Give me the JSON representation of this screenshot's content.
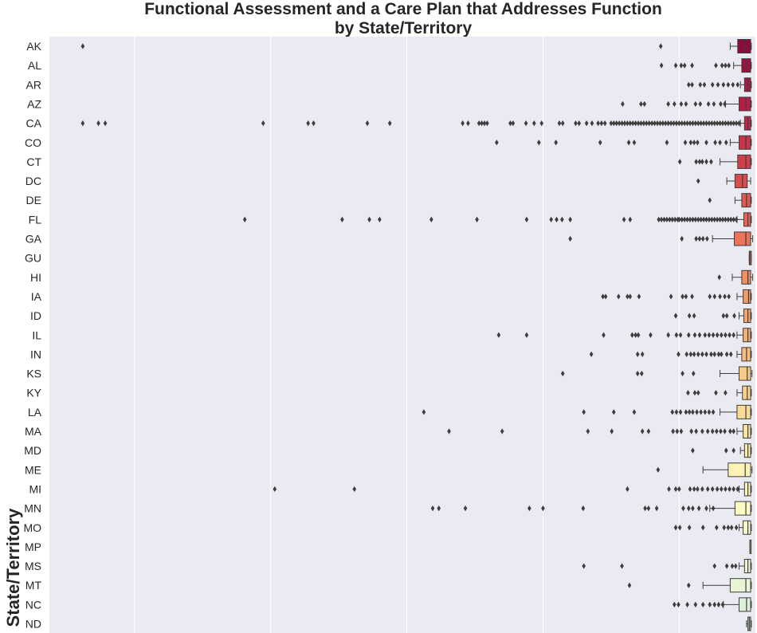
{
  "chart_data": {
    "type": "boxplot",
    "orientation": "horizontal",
    "title": [
      "Functional Assessment and a Care Plan that Addresses Function",
      "by State/Territory"
    ],
    "xlabel": "",
    "ylabel": "State/Territory",
    "xlim": [
      -25,
      1012
    ],
    "grid": true,
    "colormap": "YlOrRd (reversed, top dark red to bottom pale yellow)",
    "categories": [
      "AK",
      "AL",
      "AR",
      "AZ",
      "CA",
      "CO",
      "CT",
      "DC",
      "DE",
      "FL",
      "GA",
      "GU",
      "HI",
      "IA",
      "ID",
      "IL",
      "IN",
      "KS",
      "KY",
      "LA",
      "MA",
      "MD",
      "ME",
      "MI",
      "MN",
      "MO",
      "MP",
      "MS",
      "MT",
      "NC",
      "ND"
    ],
    "series": [
      {
        "cat": "AK",
        "color": "#8e0a3b",
        "q1": 986,
        "median": 996,
        "q3": 1005,
        "whisker_low": 975,
        "whisker_high": 1006,
        "outliers": [
          24,
          873
        ]
      },
      {
        "cat": "AL",
        "color": "#9c1140",
        "q1": 992,
        "median": 999,
        "q3": 1005,
        "whisker_low": 980,
        "whisker_high": 1006,
        "outliers": [
          874,
          895,
          903,
          908,
          919,
          954,
          963,
          968,
          973
        ]
      },
      {
        "cat": "AR",
        "color": "#a91844",
        "q1": 996,
        "median": 1001,
        "q3": 1005,
        "whisker_low": 990,
        "whisker_high": 1006,
        "outliers": [
          914,
          919,
          931,
          937,
          949,
          957,
          965,
          972,
          979,
          986
        ]
      },
      {
        "cat": "AZ",
        "color": "#b42045",
        "q1": 988,
        "median": 998,
        "q3": 1005,
        "whisker_low": 968,
        "whisker_high": 1006,
        "outliers": [
          817,
          844,
          849,
          884,
          893,
          903,
          910,
          924,
          931,
          943,
          951,
          961,
          967
        ]
      },
      {
        "cat": "CA",
        "color": "#be2a46",
        "q1": 996,
        "median": 1001,
        "q3": 1005,
        "whisker_low": 990,
        "whisker_high": 1006,
        "outliers": [
          24,
          47,
          57,
          289,
          355,
          363,
          442,
          475,
          582,
          590,
          606,
          610,
          614,
          618,
          652,
          656,
          675,
          687,
          698,
          724,
          729,
          748,
          753,
          764,
          772,
          781,
          786,
          791,
          800,
          804,
          808,
          812,
          816,
          820,
          824,
          828,
          832,
          836,
          840,
          844,
          848,
          852,
          856,
          860,
          864,
          868,
          872,
          876,
          880,
          884,
          888,
          892,
          896,
          900,
          904,
          908,
          912,
          916,
          920,
          924,
          928,
          932,
          936,
          940,
          944,
          948,
          952,
          956,
          960,
          964,
          968,
          972,
          976,
          980,
          984,
          988
        ]
      },
      {
        "cat": "CO",
        "color": "#c73548",
        "q1": 988,
        "median": 998,
        "q3": 1005,
        "whisker_low": 975,
        "whisker_high": 1006,
        "outliers": [
          632,
          694,
          719,
          784,
          826,
          834,
          882,
          909,
          917,
          922,
          927,
          940,
          953,
          960,
          969
        ]
      },
      {
        "cat": "CT",
        "color": "#d0404b",
        "q1": 986,
        "median": 998,
        "q3": 1005,
        "whisker_low": 960,
        "whisker_high": 1006,
        "outliers": [
          901,
          925,
          930,
          934,
          940,
          947
        ]
      },
      {
        "cat": "DC",
        "color": "#d84c4e",
        "q1": 982,
        "median": 993,
        "q3": 1000,
        "whisker_low": 970,
        "whisker_high": 1005,
        "outliers": [
          928
        ]
      },
      {
        "cat": "DE",
        "color": "#df5952",
        "q1": 992,
        "median": 999,
        "q3": 1005,
        "whisker_low": 982,
        "whisker_high": 1006,
        "outliers": [
          945
        ]
      },
      {
        "cat": "FL",
        "color": "#e56656",
        "q1": 995,
        "median": 1001,
        "q3": 1005,
        "whisker_low": 985,
        "whisker_high": 1006,
        "outliers": [
          262,
          405,
          445,
          460,
          536,
          603,
          676,
          712,
          720,
          728,
          740,
          819,
          828,
          870,
          874,
          878,
          882,
          886,
          890,
          894,
          898,
          900,
          904,
          908,
          912,
          916,
          920,
          924,
          928,
          932,
          936,
          940,
          944,
          948,
          952,
          956,
          960,
          964,
          968,
          972,
          976,
          980,
          984
        ]
      },
      {
        "cat": "GA",
        "color": "#ea735a",
        "q1": 981,
        "median": 998,
        "q3": 1005,
        "whisker_low": 949,
        "whisker_high": 1008,
        "outliers": [
          740,
          904,
          925,
          930,
          935,
          941
        ]
      },
      {
        "cat": "GU",
        "color": "#ee815f",
        "q1": 1003,
        "median": 1004,
        "q3": 1006,
        "whisker_low": 1003,
        "whisker_high": 1006,
        "outliers": []
      },
      {
        "cat": "HI",
        "color": "#f18e63",
        "q1": 992,
        "median": 1001,
        "q3": 1005,
        "whisker_low": 978,
        "whisker_high": 1008,
        "outliers": [
          959
        ]
      },
      {
        "cat": "IA",
        "color": "#f39b69",
        "q1": 994,
        "median": 1002,
        "q3": 1005,
        "whisker_low": 985,
        "whisker_high": 1006,
        "outliers": [
          788,
          792,
          811,
          824,
          828,
          841,
          888,
          905,
          910,
          919,
          945,
          952,
          960,
          967,
          973
        ]
      },
      {
        "cat": "ID",
        "color": "#f5a76f",
        "q1": 995,
        "median": 1001,
        "q3": 1005,
        "whisker_low": 988,
        "whisker_high": 1006,
        "outliers": [
          895,
          915,
          922,
          965,
          970,
          981
        ]
      },
      {
        "cat": "IL",
        "color": "#f6b276",
        "q1": 994,
        "median": 1001,
        "q3": 1005,
        "whisker_low": 985,
        "whisker_high": 1006,
        "outliers": [
          635,
          676,
          789,
          831,
          836,
          840,
          858,
          884,
          896,
          902,
          914,
          923,
          930,
          938,
          944,
          950,
          956,
          962,
          968,
          974,
          980
        ]
      },
      {
        "cat": "IN",
        "color": "#f7bd7e",
        "q1": 992,
        "median": 999,
        "q3": 1005,
        "whisker_low": 985,
        "whisker_high": 1006,
        "outliers": [
          771,
          839,
          846,
          899,
          911,
          917,
          922,
          928,
          934,
          940,
          947,
          952,
          958,
          962,
          970,
          976
        ]
      },
      {
        "cat": "KS",
        "color": "#f8c886",
        "q1": 988,
        "median": 1000,
        "q3": 1005,
        "whisker_low": 960,
        "whisker_high": 1007,
        "outliers": [
          729,
          839,
          845,
          905,
          921
        ]
      },
      {
        "cat": "KY",
        "color": "#f9d28f",
        "q1": 993,
        "median": 1000,
        "q3": 1005,
        "whisker_low": 985,
        "whisker_high": 1006,
        "outliers": [
          913,
          923,
          928,
          954,
          968
        ]
      },
      {
        "cat": "LA",
        "color": "#fadc98",
        "q1": 985,
        "median": 998,
        "q3": 1005,
        "whisker_low": 960,
        "whisker_high": 1006,
        "outliers": [
          525,
          760,
          804,
          834,
          890,
          896,
          902,
          910,
          915,
          920,
          926,
          932,
          938,
          944,
          950
        ]
      },
      {
        "cat": "MA",
        "color": "#fbe5a2",
        "q1": 994,
        "median": 1001,
        "q3": 1005,
        "whisker_low": 985,
        "whisker_high": 1006,
        "outliers": [
          562,
          640,
          766,
          801,
          846,
          855,
          891,
          897,
          903,
          918,
          925,
          934,
          942,
          949,
          955,
          961,
          967,
          975,
          980
        ]
      },
      {
        "cat": "MD",
        "color": "#fcedab",
        "q1": 996,
        "median": 1001,
        "q3": 1005,
        "whisker_low": 990,
        "whisker_high": 1006,
        "outliers": [
          920,
          969,
          980
        ]
      },
      {
        "cat": "ME",
        "color": "#fcf3b5",
        "q1": 972,
        "median": 997,
        "q3": 1005,
        "whisker_low": 935,
        "whisker_high": 1007,
        "outliers": [
          869
        ]
      },
      {
        "cat": "MI",
        "color": "#fcf8be",
        "q1": 996,
        "median": 1001,
        "q3": 1005,
        "whisker_low": 988,
        "whisker_high": 1006,
        "outliers": [
          306,
          423,
          824,
          885,
          895,
          900,
          916,
          922,
          927,
          934,
          942,
          949,
          956,
          962,
          968,
          974,
          980,
          986
        ]
      },
      {
        "cat": "MN",
        "color": "#fcfbc5",
        "q1": 982,
        "median": 998,
        "q3": 1005,
        "whisker_low": 945,
        "whisker_high": 1006,
        "outliers": [
          538,
          547,
          586,
          680,
          700,
          759,
          850,
          855,
          867,
          906,
          914,
          920,
          929,
          940,
          950
        ]
      },
      {
        "cat": "MO",
        "color": "#fbfdcd",
        "q1": 994,
        "median": 1001,
        "q3": 1005,
        "whisker_low": 988,
        "whisker_high": 1006,
        "outliers": [
          895,
          901,
          915,
          935,
          955,
          966,
          972,
          977,
          984
        ]
      },
      {
        "cat": "MP",
        "color": "#f6fbd0",
        "q1": 1004,
        "median": 1004,
        "q3": 1005,
        "whisker_low": 1004,
        "whisker_high": 1005,
        "outliers": []
      },
      {
        "cat": "MS",
        "color": "#eff8d3",
        "q1": 996,
        "median": 1001,
        "q3": 1005,
        "whisker_low": 988,
        "whisker_high": 1006,
        "outliers": [
          760,
          816,
          952,
          970,
          978,
          983
        ]
      },
      {
        "cat": "MT",
        "color": "#e7f4d6",
        "q1": 975,
        "median": 998,
        "q3": 1005,
        "whisker_low": 935,
        "whisker_high": 1006,
        "outliers": [
          827,
          914
        ]
      },
      {
        "cat": "NC",
        "color": "#dff0da",
        "q1": 988,
        "median": 999,
        "q3": 1005,
        "whisker_low": 965,
        "whisker_high": 1006,
        "outliers": [
          893,
          899,
          912,
          924,
          935,
          945,
          952,
          958,
          964
        ]
      },
      {
        "cat": "ND",
        "color": "#d7ecde",
        "q1": 1001,
        "median": 1003,
        "q3": 1005,
        "whisker_low": 999,
        "whisker_high": 1006,
        "outliers": []
      }
    ]
  }
}
